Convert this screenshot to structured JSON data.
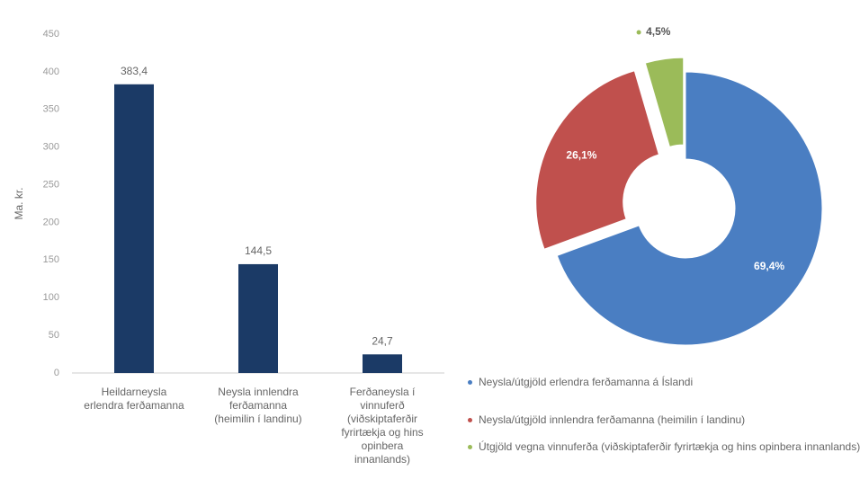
{
  "chart_data": [
    {
      "type": "bar",
      "y_label": "Ma. kr.",
      "categories": [
        "Heildarneysla erlendra ferðamanna",
        "Neysla innlendra ferðamanna (heimilin í landinu)",
        "Ferðaneysla í vinnuferð (viðskiptaferðir fyrirtækja og hins opinbera innanlands)"
      ],
      "values": [
        383.4,
        144.5,
        24.7
      ],
      "value_labels": [
        "383,4",
        "144,5",
        "24,7"
      ],
      "color": "#1b3a66",
      "ylim": [
        0,
        450
      ],
      "yticks": [
        0,
        50,
        100,
        150,
        200,
        250,
        300,
        350,
        400,
        450
      ],
      "grid": false
    },
    {
      "type": "pie",
      "categories": [
        "Neysla/útgjöld erlendra ferðamanna á Íslandi",
        "Neysla/útgjöld innlendra ferðamanna (heimilin í landinu)",
        "Útgjöld vegna vinnuferða (viðskiptaferðir fyrirtækja og hins opinbera innanlands)"
      ],
      "values": [
        69.4,
        26.1,
        4.5
      ],
      "value_labels": [
        "69,4%",
        "26,1%",
        "4,5%"
      ],
      "colors": [
        "#4a7ec2",
        "#c0504d",
        "#9bbb59"
      ],
      "legend": "bottom",
      "donut": true
    }
  ]
}
